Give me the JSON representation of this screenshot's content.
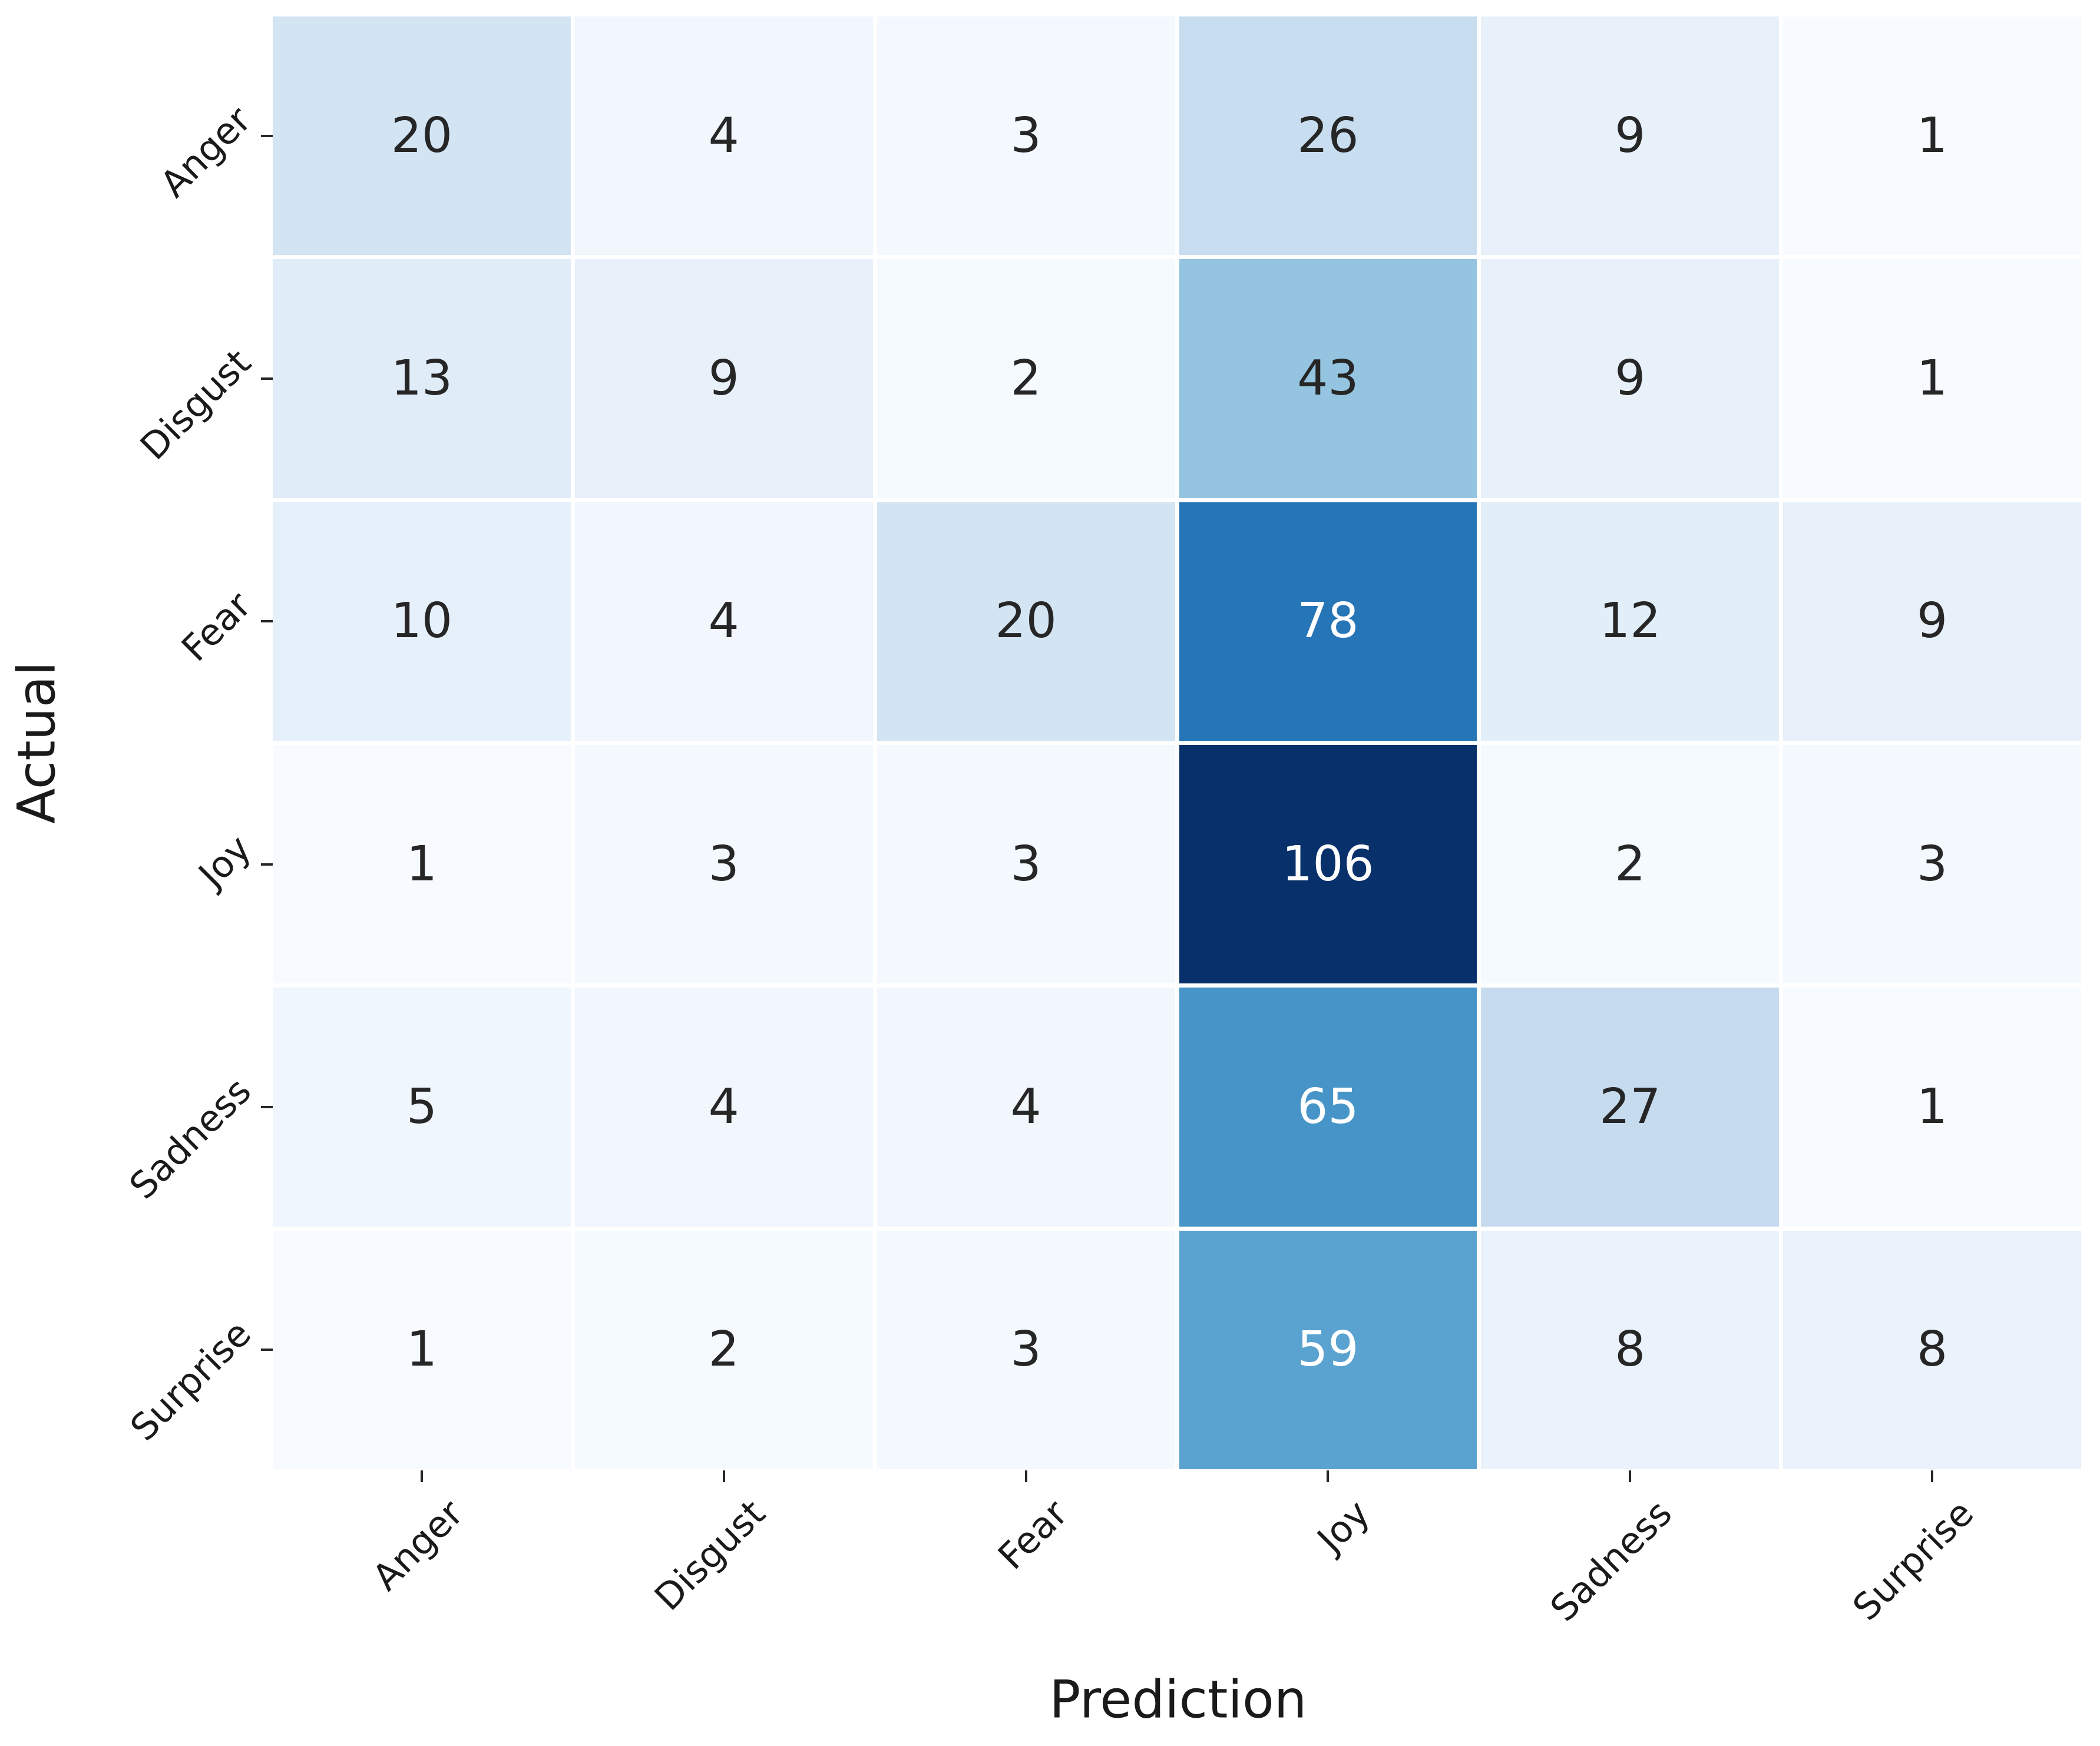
{
  "chart_data": {
    "type": "heatmap",
    "title": "",
    "xlabel": "Prediction",
    "ylabel": "Actual",
    "x_categories": [
      "Anger",
      "Disgust",
      "Fear",
      "Joy",
      "Sadness",
      "Surprise"
    ],
    "y_categories": [
      "Anger",
      "Disgust",
      "Fear",
      "Joy",
      "Sadness",
      "Surprise"
    ],
    "matrix": [
      [
        20,
        4,
        3,
        26,
        9,
        1
      ],
      [
        13,
        9,
        2,
        43,
        9,
        1
      ],
      [
        10,
        4,
        20,
        78,
        12,
        9
      ],
      [
        1,
        3,
        3,
        106,
        2,
        3
      ],
      [
        5,
        4,
        4,
        65,
        27,
        1
      ],
      [
        1,
        2,
        3,
        59,
        8,
        8
      ]
    ],
    "colormap": "Blues",
    "vmin": 1,
    "vmax": 106,
    "cell_colors": [
      [
        "#d3e4f3",
        "#f1f7fd",
        "#f3f9fe",
        "#c8ddf0",
        "#e8f1fa",
        "#f7fbff"
      ],
      [
        "#e0ecf8",
        "#e8f1fa",
        "#f5fafe",
        "#94c4df",
        "#e8f1fa",
        "#f7fbff"
      ],
      [
        "#e6f0fa",
        "#f1f7fd",
        "#d3e4f3",
        "#2575b7",
        "#e2eef8",
        "#e8f1fa"
      ],
      [
        "#f7fbff",
        "#f3f9fe",
        "#f3f9fe",
        "#08306b",
        "#f5fafe",
        "#f3f9fe"
      ],
      [
        "#eff6fd",
        "#f1f7fd",
        "#f1f7fd",
        "#4795c8",
        "#c7dbef",
        "#f7fbff"
      ],
      [
        "#f7fbff",
        "#f5fafe",
        "#f3f9fe",
        "#5aa2cf",
        "#eaf2fb",
        "#eaf2fb"
      ]
    ],
    "cell_text_colors": [
      [
        "#262626",
        "#262626",
        "#262626",
        "#262626",
        "#262626",
        "#262626"
      ],
      [
        "#262626",
        "#262626",
        "#262626",
        "#262626",
        "#262626",
        "#262626"
      ],
      [
        "#262626",
        "#262626",
        "#262626",
        "#ffffff",
        "#262626",
        "#262626"
      ],
      [
        "#262626",
        "#262626",
        "#262626",
        "#ffffff",
        "#262626",
        "#262626"
      ],
      [
        "#262626",
        "#262626",
        "#262626",
        "#ffffff",
        "#262626",
        "#262626"
      ],
      [
        "#262626",
        "#262626",
        "#262626",
        "#ffffff",
        "#262626",
        "#262626"
      ]
    ],
    "tick_color": "#262626",
    "label_color": "#1a1a1a",
    "background": "#ffffff",
    "grid": "white-gaps",
    "legend": "none",
    "x_tick_rotation_deg": 45,
    "y_tick_rotation_deg": 45
  }
}
